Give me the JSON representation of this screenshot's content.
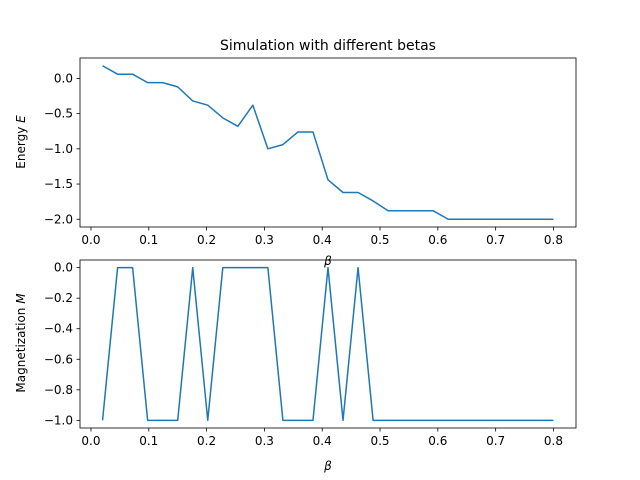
{
  "chart_data": [
    {
      "type": "line",
      "title": "Simulation with different betas",
      "xlabel": "β",
      "ylabel_text": "Energy ",
      "ylabel_symbol": "E",
      "xlim": [
        -0.019,
        0.839
      ],
      "ylim": [
        -2.11,
        0.29
      ],
      "xticks": [
        0.0,
        0.1,
        0.2,
        0.3,
        0.4,
        0.5,
        0.6,
        0.7,
        0.8
      ],
      "xtick_labels": [
        "0.0",
        "0.1",
        "0.2",
        "0.3",
        "0.4",
        "0.5",
        "0.6",
        "0.7",
        "0.8"
      ],
      "yticks": [
        0.0,
        -0.5,
        -1.0,
        -1.5,
        -2.0
      ],
      "ytick_labels": [
        "0.0",
        "−0.5",
        "−1.0",
        "−1.5",
        "−2.0"
      ],
      "color": "#1f77b4",
      "x": [
        0.02,
        0.046,
        0.072,
        0.098,
        0.124,
        0.15,
        0.176,
        0.202,
        0.228,
        0.254,
        0.28,
        0.306,
        0.332,
        0.358,
        0.384,
        0.41,
        0.436,
        0.462,
        0.488,
        0.514,
        0.54,
        0.566,
        0.592,
        0.618,
        0.644,
        0.67,
        0.696,
        0.722,
        0.748,
        0.774,
        0.8
      ],
      "y": [
        0.18,
        0.06,
        0.06,
        -0.06,
        -0.06,
        -0.12,
        -0.32,
        -0.38,
        -0.56,
        -0.68,
        -0.38,
        -1.0,
        -0.94,
        -0.76,
        -0.76,
        -1.44,
        -1.62,
        -1.62,
        -1.74,
        -1.88,
        -1.88,
        -1.88,
        -1.88,
        -2.0,
        -2.0,
        -2.0,
        -2.0,
        -2.0,
        -2.0,
        -2.0,
        -2.0
      ]
    },
    {
      "type": "line",
      "xlabel": "β",
      "ylabel_text": "Magnetization ",
      "ylabel_symbol": "M",
      "xlim": [
        -0.019,
        0.839
      ],
      "ylim": [
        -1.05,
        0.05
      ],
      "xticks": [
        0.0,
        0.1,
        0.2,
        0.3,
        0.4,
        0.5,
        0.6,
        0.7,
        0.8
      ],
      "xtick_labels": [
        "0.0",
        "0.1",
        "0.2",
        "0.3",
        "0.4",
        "0.5",
        "0.6",
        "0.7",
        "0.8"
      ],
      "yticks": [
        0.0,
        -0.2,
        -0.4,
        -0.6,
        -0.8,
        -1.0
      ],
      "ytick_labels": [
        "0.0",
        "−0.2",
        "−0.4",
        "−0.6",
        "−0.8",
        "−1.0"
      ],
      "color": "#1f77b4",
      "x": [
        0.02,
        0.046,
        0.072,
        0.098,
        0.124,
        0.15,
        0.176,
        0.202,
        0.228,
        0.254,
        0.28,
        0.306,
        0.332,
        0.358,
        0.384,
        0.41,
        0.436,
        0.462,
        0.488,
        0.514,
        0.54,
        0.566,
        0.592,
        0.618,
        0.644,
        0.67,
        0.696,
        0.722,
        0.748,
        0.774,
        0.8
      ],
      "y": [
        -1,
        0,
        0,
        -1,
        -1,
        -1,
        0,
        -1,
        0,
        0,
        0,
        0,
        -1,
        -1,
        -1,
        0,
        -1,
        0,
        -1,
        -1,
        -1,
        -1,
        -1,
        -1,
        -1,
        -1,
        -1,
        -1,
        -1,
        -1,
        -1
      ]
    }
  ]
}
